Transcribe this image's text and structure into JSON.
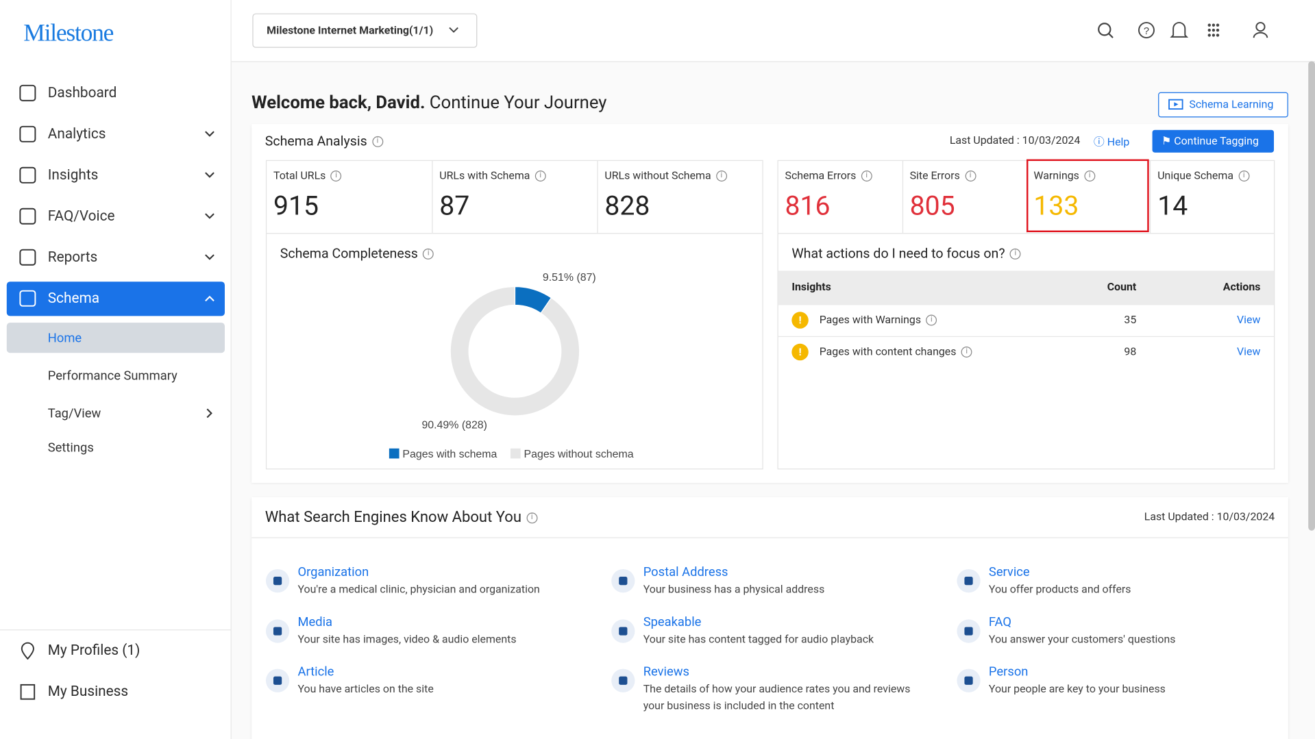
{
  "sidebar": {
    "logo": "Milestone",
    "nav": [
      "Dashboard",
      "Analytics",
      "Insights",
      "FAQ/Voice",
      "Reports",
      "Schema"
    ],
    "subnav": [
      "Home",
      "Performance Summary",
      "Tag/View",
      "Settings"
    ],
    "footer": [
      "My Profiles (1)",
      "My Business"
    ]
  },
  "header": {
    "account": "Milestone Internet Marketing(1/1)"
  },
  "welcome": {
    "bold": "Welcome back, David.",
    "rest": "Continue Your Journey",
    "button": "Schema Learning"
  },
  "schema_analysis": {
    "title": "Schema Analysis",
    "last_updated": "Last Updated : 10/03/2024",
    "help": "Help",
    "button": "Continue Tagging",
    "stats": [
      {
        "label": "Total URLs",
        "value": 915
      },
      {
        "label": "URLs with Schema",
        "value": 87
      },
      {
        "label": "URLs without Schema",
        "value": 828
      },
      {
        "label": "Schema Errors",
        "value": 816
      },
      {
        "label": "Site Errors",
        "value": 805
      },
      {
        "label": "Warnings",
        "value": 133
      },
      {
        "label": "Unique Schema",
        "value": 14
      }
    ],
    "completeness": {
      "type": "pie",
      "title": "Schema Completeness",
      "categories": [
        "Pages with schema",
        "Pages without schema"
      ],
      "values": [
        9.51,
        90.49
      ],
      "value_labels": [
        "9.51% (87)",
        "90.49% (828)"
      ],
      "colors": [
        "#0b6fc0",
        "#e6e6e6"
      ],
      "donut": true
    },
    "focus": {
      "title": "What actions do I need to focus on?",
      "headers": [
        "Insights",
        "Count",
        "Actions"
      ],
      "rows": [
        [
          "Pages with Warnings",
          35,
          "View"
        ],
        [
          "Pages with content changes",
          98,
          "View"
        ]
      ]
    }
  },
  "search_engines": {
    "title": "What Search Engines Know About You",
    "last_updated": "Last Updated : 10/03/2024",
    "items": [
      {
        "title": "Organization",
        "desc": "You're a medical clinic, physician and organization"
      },
      {
        "title": "Postal Address",
        "desc": "Your business has a physical address"
      },
      {
        "title": "Service",
        "desc": "You offer products and offers"
      },
      {
        "title": "Media",
        "desc": "Your site has images, video & audio elements"
      },
      {
        "title": "Speakable",
        "desc": "Your site has content tagged for audio playback"
      },
      {
        "title": "FAQ",
        "desc": "You answer your customers' questions"
      },
      {
        "title": "Article",
        "desc": "You have articles on the site"
      },
      {
        "title": "Reviews",
        "desc": "The details of how your audience rates you and reviews your business is included in the content"
      },
      {
        "title": "Person",
        "desc": "Your people are key to your business"
      }
    ]
  }
}
